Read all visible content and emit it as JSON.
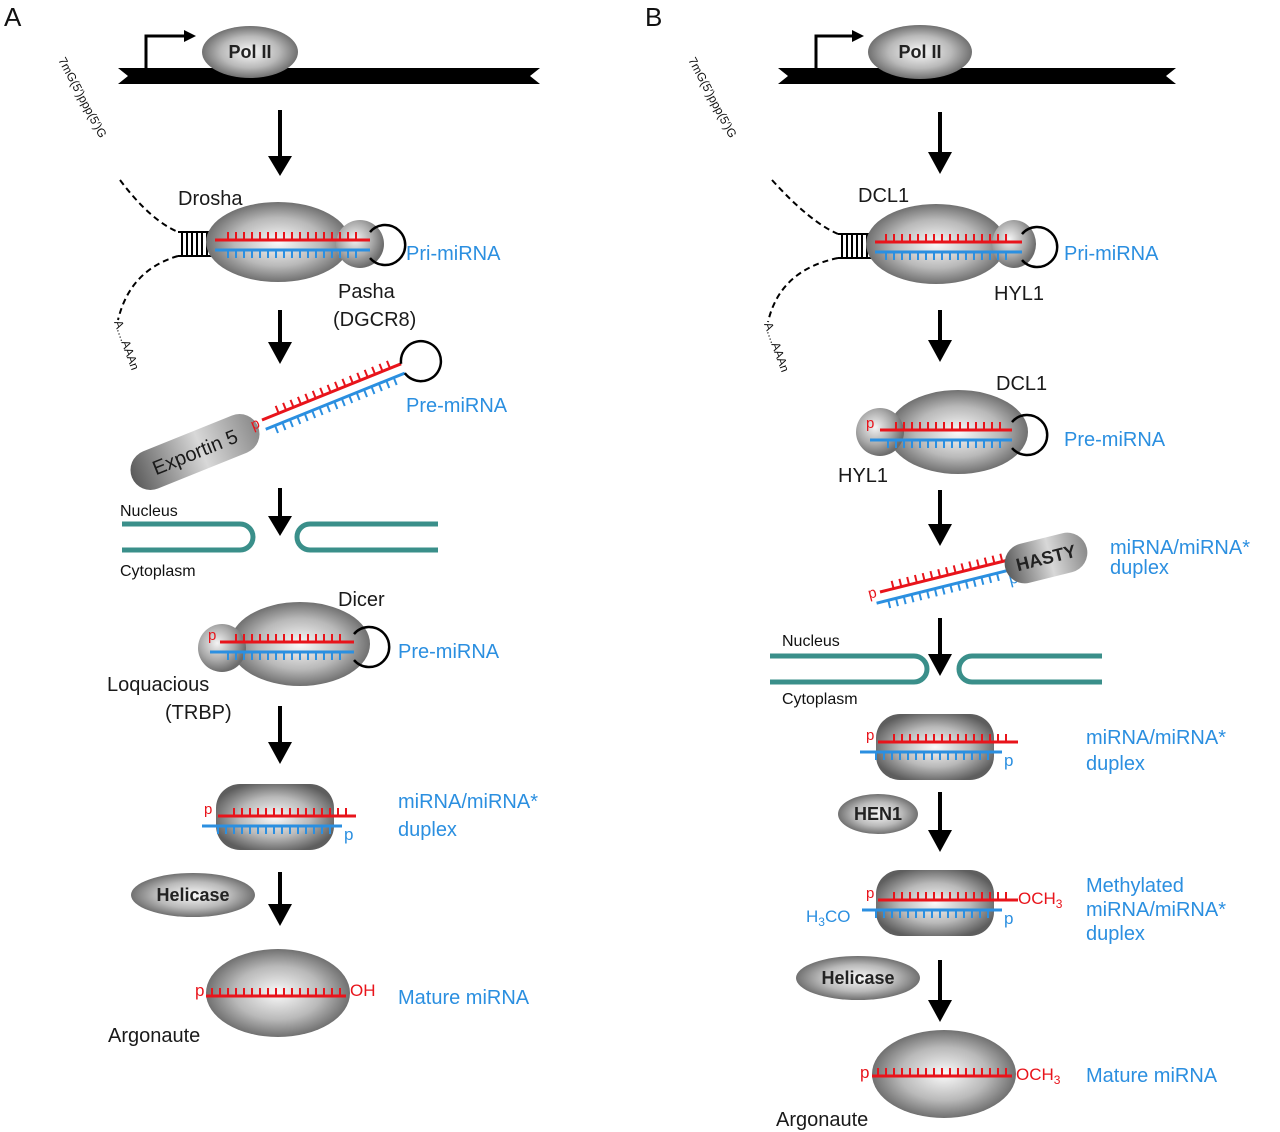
{
  "panels": {
    "a": "A",
    "b": "B"
  },
  "colors": {
    "mirna": "#e8141b",
    "star": "#2b8fe0",
    "membrane": "#3a8f8a",
    "label_blue": "#2b8fe0"
  },
  "common": {
    "pol2": "Pol II",
    "cap": "7mG(5′)ppp(5′)G",
    "polya": "A....AAAn",
    "nucleus": "Nucleus",
    "cytoplasm": "Cytoplasm",
    "p": "p",
    "oh": "OH",
    "och3": "OCH",
    "h3co": "H",
    "h3co_mid": "3",
    "h3co_end": "CO",
    "sub3": "3",
    "argonaute": "Argonaute",
    "helicase": "Helicase",
    "mature": "Mature miRNA",
    "duplex1": "miRNA/miRNA*",
    "duplex2": "duplex",
    "pri": "Pri-miRNA",
    "pre": "Pre-miRNA"
  },
  "a": {
    "drosha": "Drosha",
    "pasha": "Pasha",
    "dgcr8": "(DGCR8)",
    "exportin": "Exportin 5",
    "dicer": "Dicer",
    "loquacious": "Loquacious",
    "trbp": "(TRBP)"
  },
  "b": {
    "dcl1": "DCL1",
    "hyl1": "HYL1",
    "hasty": "HASTY",
    "hen1": "HEN1",
    "methylated": "Methylated"
  }
}
